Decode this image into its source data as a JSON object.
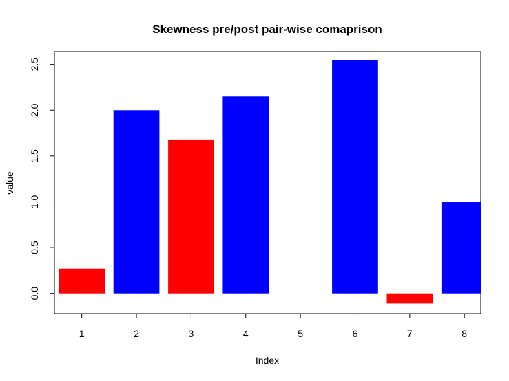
{
  "chart_data": {
    "type": "bar",
    "title": "Skewness pre/post pair-wise comaprison",
    "xlabel": "Index",
    "ylabel": "value",
    "categories": [
      "1",
      "2",
      "3",
      "4",
      "5",
      "6",
      "7",
      "8"
    ],
    "values": [
      0.27,
      2.0,
      1.68,
      2.15,
      0.0,
      2.55,
      -0.11,
      1.0
    ],
    "bar_colors": [
      "#ff0000",
      "#0000ff",
      "#ff0000",
      "#0000ff",
      "#0000ff",
      "#0000ff",
      "#ff0000",
      "#0000ff"
    ],
    "xlim": [
      0.5,
      8.3
    ],
    "ylim": [
      -0.22,
      2.64
    ],
    "yticks": [
      "0.0",
      "0.5",
      "1.0",
      "1.5",
      "2.0",
      "2.5"
    ],
    "grid": false,
    "legend": "none"
  }
}
